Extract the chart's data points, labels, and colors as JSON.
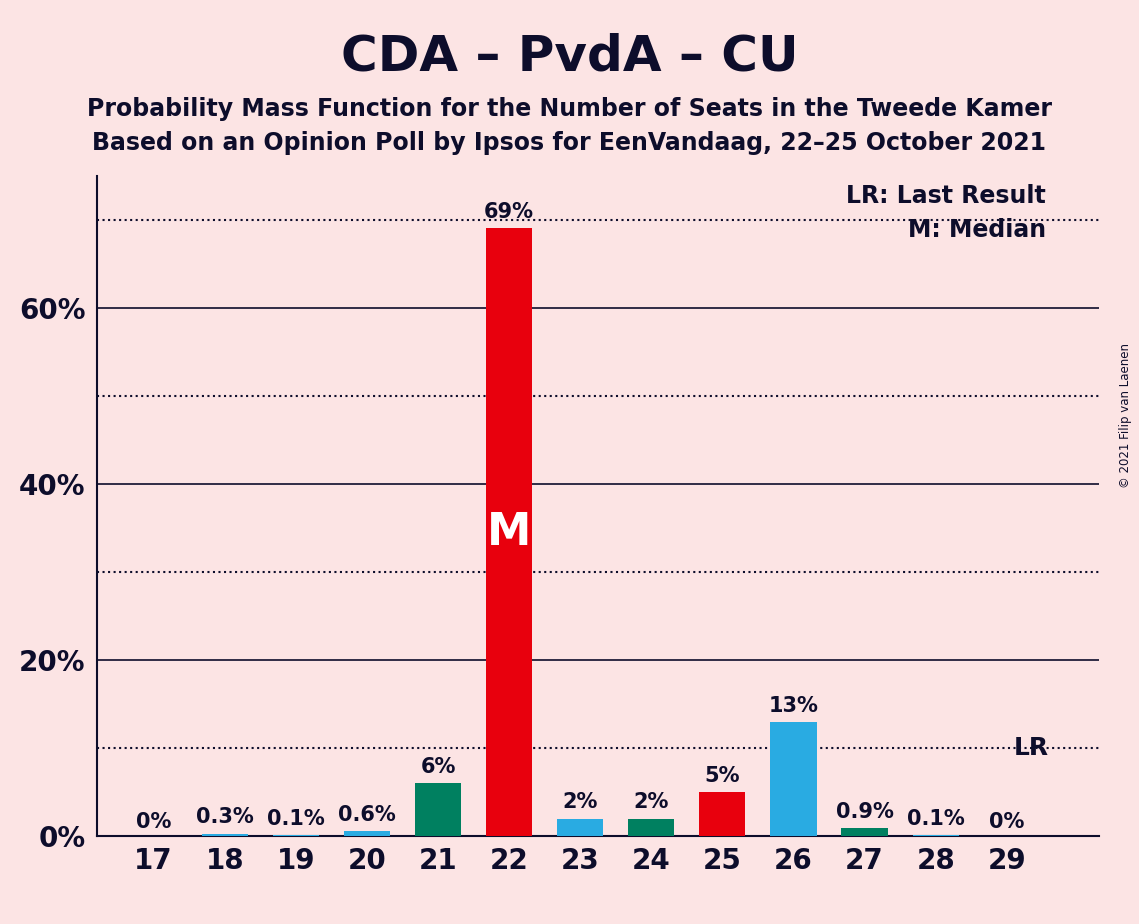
{
  "title": "CDA – PvdA – CU",
  "subtitle1": "Probability Mass Function for the Number of Seats in the Tweede Kamer",
  "subtitle2": "Based on an Opinion Poll by Ipsos for EenVandaag, 22–25 October 2021",
  "copyright": "© 2021 Filip van Laenen",
  "seats": [
    17,
    18,
    19,
    20,
    21,
    22,
    23,
    24,
    25,
    26,
    27,
    28,
    29
  ],
  "values": [
    0.0,
    0.3,
    0.1,
    0.6,
    6.0,
    69.0,
    2.0,
    2.0,
    5.0,
    13.0,
    0.9,
    0.1,
    0.0
  ],
  "labels": [
    "0%",
    "0.3%",
    "0.1%",
    "0.6%",
    "6%",
    "69%",
    "2%",
    "2%",
    "5%",
    "13%",
    "0.9%",
    "0.1%",
    "0%"
  ],
  "bar_colors": [
    "#fce4e4",
    "#29abe2",
    "#29abe2",
    "#29abe2",
    "#008060",
    "#e8000d",
    "#29abe2",
    "#008060",
    "#e8000d",
    "#29abe2",
    "#008060",
    "#29abe2",
    "#fce4e4"
  ],
  "median_seat": 22,
  "median_label": "M",
  "lr_value": 10.0,
  "lr_label": "LR",
  "lr_legend": "LR: Last Result",
  "m_legend": "M: Median",
  "background_color": "#fce4e4",
  "text_color": "#0d0d2b",
  "ylim": [
    0,
    75
  ],
  "solid_gridlines": [
    20,
    40,
    60
  ],
  "dotted_gridlines": [
    10,
    30,
    50,
    70
  ],
  "ytick_positions": [
    0,
    20,
    40,
    60
  ],
  "ytick_labels": [
    "0%",
    "20%",
    "40%",
    "60%"
  ],
  "title_fontsize": 36,
  "subtitle_fontsize": 17,
  "label_fontsize": 15,
  "tick_fontsize": 20,
  "bar_width": 0.65
}
